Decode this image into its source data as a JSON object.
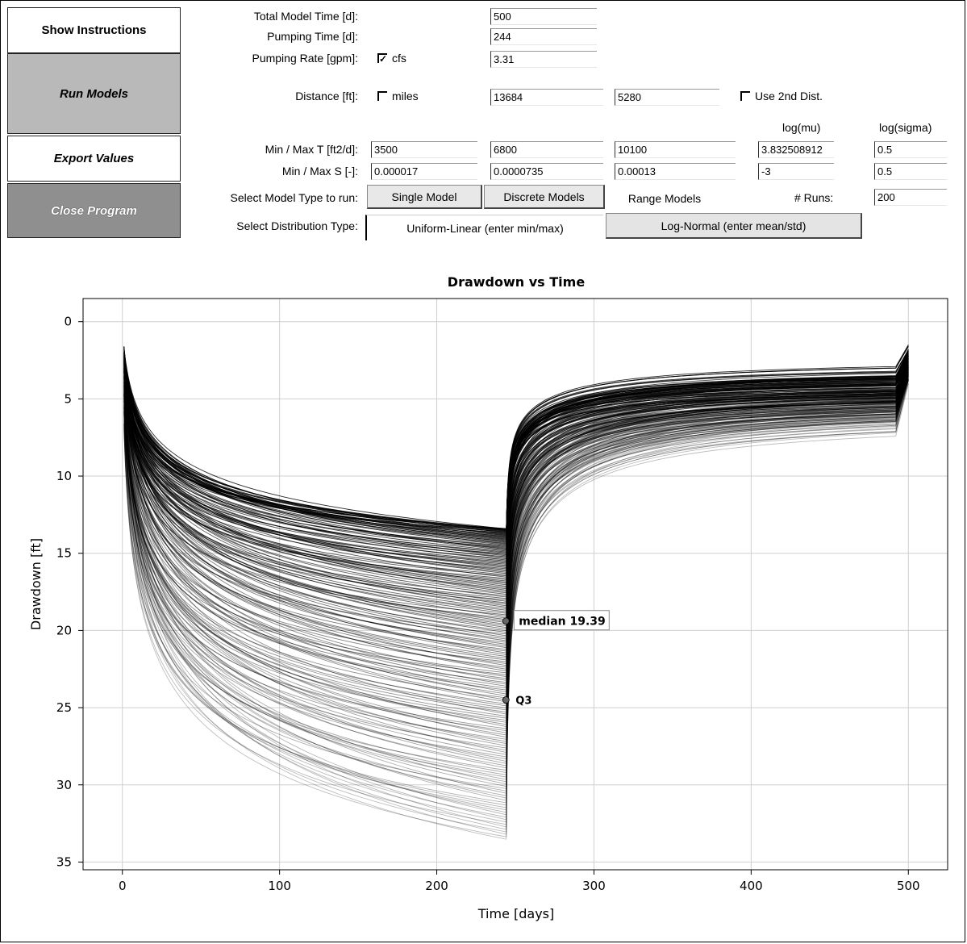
{
  "sidebar": {
    "show_instructions": "Show Instructions",
    "run_models": "Run Models",
    "export_values": "Export Values",
    "close_program": "Close Program"
  },
  "inputs": {
    "total_time": {
      "label": "Total Model Time [d]:",
      "value": "500"
    },
    "pumping_time": {
      "label": "Pumping Time [d]:",
      "value": "244"
    },
    "pumping_rate": {
      "label": "Pumping Rate [gpm]:",
      "value": "3.31",
      "check_label": "cfs",
      "checked": true
    },
    "distance": {
      "label": "Distance [ft]:",
      "value": "13684",
      "value2": "5280",
      "check_label": "miles",
      "checked": false,
      "use2_label": "Use 2nd Dist."
    },
    "col_headers": {
      "mu": "log(mu)",
      "sigma": "log(sigma)"
    },
    "min_max_t": {
      "label": "Min / Max T [ft2/d]:",
      "min": "3500",
      "mid": "6800",
      "max": "10100",
      "mu": "3.832508912",
      "sigma": "0.5"
    },
    "min_max_s": {
      "label": "Min / Max S [-]:",
      "min": "0.000017",
      "mid": "0.0000735",
      "max": "0.00013",
      "mu": "-3",
      "sigma": "0.5"
    },
    "model_type": {
      "label": "Select Model Type to run:",
      "single": "Single Model",
      "discrete": "Discrete Models",
      "range": "Range Models",
      "runs_label": "# Runs:",
      "runs": "200"
    },
    "dist_type": {
      "label": "Select Distribution Type:",
      "uniform": "Uniform-Linear (enter min/max)",
      "lognormal": "Log-Normal (enter mean/std)"
    }
  },
  "chart_data": {
    "type": "line",
    "title": "Drawdown vs Time",
    "xlabel": "Time [days]",
    "ylabel": "Drawdown [ft]",
    "xlim": [
      -25,
      525
    ],
    "ylim": [
      35.5,
      -1.5
    ],
    "y_inverted": true,
    "xticks": [
      "0",
      "100",
      "200",
      "300",
      "400",
      "500"
    ],
    "yticks": [
      "0",
      "5",
      "10",
      "15",
      "20",
      "25",
      "30",
      "35"
    ],
    "grid": true,
    "pumping_stop_day": 244,
    "end_day": 500,
    "n_runs": 200,
    "drawdown_at_stop_range": [
      13.4,
      33.6
    ],
    "recovery_at_end_range": [
      1.5,
      4.1
    ],
    "annotations": [
      {
        "text": "median 19.39",
        "x": 244,
        "y": 19.39,
        "boxed": true
      },
      {
        "text": "Q3",
        "x": 244,
        "y": 24.5,
        "boxed": false
      }
    ],
    "colors": {
      "curves": "#000000",
      "grid": "#cfcfcf"
    }
  }
}
